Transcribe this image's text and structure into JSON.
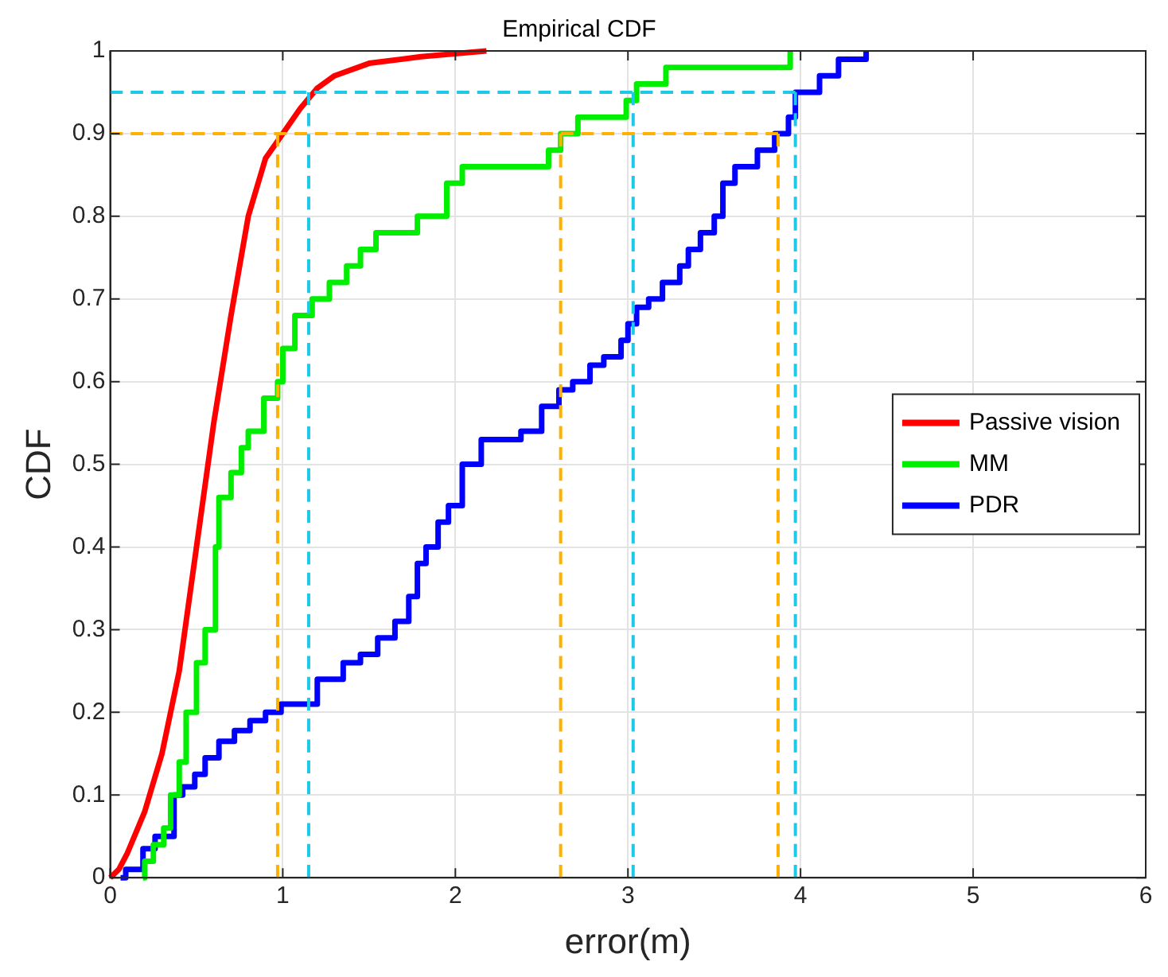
{
  "chart_data": {
    "type": "line",
    "title": "Empirical CDF",
    "xlabel": "error(m)",
    "ylabel": "CDF",
    "xlim": [
      0,
      6
    ],
    "xticks": [
      0,
      1,
      2,
      3,
      4,
      5,
      6
    ],
    "ylim": [
      0,
      1
    ],
    "yticks": [
      0,
      0.1,
      0.2,
      0.3,
      0.4,
      0.5,
      0.6,
      0.7,
      0.8,
      0.9,
      1
    ],
    "grid": true,
    "legend": "right",
    "marker": "none",
    "series": [
      {
        "name": "Passive vision",
        "color": "#ff0000",
        "type": "line",
        "x": [
          0,
          0.05,
          0.1,
          0.2,
          0.3,
          0.4,
          0.5,
          0.6,
          0.7,
          0.8,
          0.9,
          1.0,
          1.1,
          1.2,
          1.3,
          1.5,
          1.8,
          2.18
        ],
        "values": [
          0,
          0.01,
          0.03,
          0.08,
          0.15,
          0.25,
          0.4,
          0.55,
          0.68,
          0.8,
          0.87,
          0.9,
          0.93,
          0.955,
          0.97,
          0.985,
          0.993,
          1.0
        ]
      },
      {
        "name": "MM",
        "color": "#00ee00",
        "type": "step",
        "x": [
          0.19,
          0.2,
          0.25,
          0.31,
          0.35,
          0.4,
          0.44,
          0.5,
          0.55,
          0.61,
          0.63,
          0.7,
          0.76,
          0.8,
          0.89,
          0.97,
          1.0,
          1.07,
          1.17,
          1.27,
          1.37,
          1.45,
          1.54,
          1.78,
          1.95,
          2.04,
          2.54,
          2.61,
          2.71,
          2.99,
          3.05,
          3.22,
          3.94
        ],
        "values": [
          0,
          0.02,
          0.04,
          0.06,
          0.1,
          0.14,
          0.2,
          0.26,
          0.3,
          0.4,
          0.46,
          0.49,
          0.52,
          0.54,
          0.58,
          0.6,
          0.64,
          0.68,
          0.7,
          0.72,
          0.74,
          0.76,
          0.78,
          0.8,
          0.84,
          0.86,
          0.88,
          0.9,
          0.92,
          0.94,
          0.96,
          0.98,
          1.0
        ]
      },
      {
        "name": "PDR",
        "color": "#0000ff",
        "type": "step",
        "x": [
          0.06,
          0.09,
          0.19,
          0.26,
          0.37,
          0.42,
          0.49,
          0.55,
          0.63,
          0.72,
          0.81,
          0.9,
          0.99,
          1.2,
          1.35,
          1.45,
          1.55,
          1.65,
          1.73,
          1.78,
          1.83,
          1.9,
          1.96,
          2.04,
          2.15,
          2.38,
          2.5,
          2.6,
          2.68,
          2.78,
          2.86,
          2.96,
          3.0,
          3.05,
          3.12,
          3.2,
          3.3,
          3.35,
          3.42,
          3.5,
          3.55,
          3.62,
          3.75,
          3.85,
          3.93,
          3.97,
          4.11,
          4.22,
          4.38
        ],
        "values": [
          0,
          0.01,
          0.035,
          0.05,
          0.1,
          0.11,
          0.125,
          0.145,
          0.165,
          0.178,
          0.19,
          0.2,
          0.21,
          0.24,
          0.26,
          0.27,
          0.29,
          0.31,
          0.34,
          0.38,
          0.4,
          0.43,
          0.45,
          0.5,
          0.53,
          0.54,
          0.57,
          0.59,
          0.6,
          0.62,
          0.63,
          0.65,
          0.67,
          0.69,
          0.7,
          0.72,
          0.74,
          0.76,
          0.78,
          0.8,
          0.84,
          0.86,
          0.88,
          0.9,
          0.92,
          0.95,
          0.97,
          0.99,
          1.0
        ]
      },
      {
        "color": "#ffb000",
        "type": "line",
        "line_style": "dashed",
        "x": [
          0,
          3.87
        ],
        "values": [
          0.9,
          0.9
        ]
      },
      {
        "color": "#ffb000",
        "type": "line",
        "line_style": "dashed",
        "x": [
          0.97,
          0.97
        ],
        "values": [
          0,
          0.9
        ]
      },
      {
        "color": "#ffb000",
        "type": "line",
        "line_style": "dashed",
        "x": [
          2.61,
          2.61
        ],
        "values": [
          0,
          0.9
        ]
      },
      {
        "color": "#ffb000",
        "type": "line",
        "line_style": "dashed",
        "x": [
          3.87,
          3.87
        ],
        "values": [
          0,
          0.9
        ]
      },
      {
        "color": "#1ec8e6",
        "type": "line",
        "line_style": "dashed",
        "x": [
          0,
          3.97
        ],
        "values": [
          0.95,
          0.95
        ]
      },
      {
        "color": "#1ec8e6",
        "type": "line",
        "line_style": "dashed",
        "x": [
          1.15,
          1.15
        ],
        "values": [
          0,
          0.95
        ]
      },
      {
        "color": "#1ec8e6",
        "type": "line",
        "line_style": "dashed",
        "x": [
          3.03,
          3.03
        ],
        "values": [
          0,
          0.95
        ]
      },
      {
        "color": "#1ec8e6",
        "type": "line",
        "line_style": "dashed",
        "x": [
          3.97,
          3.97
        ],
        "values": [
          0,
          0.95
        ]
      }
    ]
  }
}
